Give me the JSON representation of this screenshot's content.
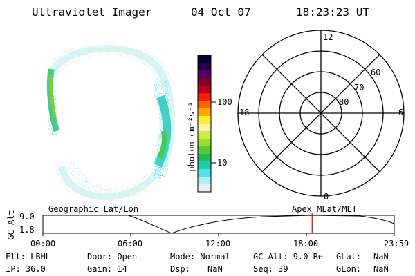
{
  "header": {
    "instrument": "Ultraviolet Imager",
    "date": "04 Oct 07",
    "time": "18:23:23 UT"
  },
  "colorbar": {
    "unit_label": "photon cm⁻²s⁻¹",
    "ticks": [
      "100",
      "10"
    ],
    "colors": [
      "#000033",
      "#220044",
      "#550066",
      "#880022",
      "#bb0022",
      "#ee2200",
      "#ff6600",
      "#ffaa00",
      "#ffee33",
      "#f6f6b0",
      "#ccee44",
      "#99dd33",
      "#55cc33",
      "#22bb55",
      "#22ccaa",
      "#55e0e8",
      "#b0eef0",
      "#e8f0f0"
    ]
  },
  "polar_plot": {
    "mlt_labels": {
      "top": "12",
      "left": "18",
      "right": "6",
      "bottom": "0"
    },
    "lat_labels": [
      "60",
      "70",
      "80"
    ]
  },
  "timeline": {
    "ylabel": "GC Alt",
    "y_ticks": [
      "9.0",
      "1.8"
    ],
    "left_caption": "Geographic Lat/Lon",
    "right_caption": "Apex  MLat/MLT",
    "x_ticks": [
      "00:00",
      "06:00",
      "12:00",
      "18:00",
      "23:59"
    ],
    "current_time_hours": 18.39
  },
  "info": {
    "row1": {
      "filter": "Flt: LBHL",
      "door": "Door: Open",
      "mode": "Mode: Normal",
      "gc_alt": "GC Alt: 9.0 Re",
      "glat_label": "GLat:",
      "glat_value": "NaN"
    },
    "row2": {
      "ip": "IP: 36.0",
      "gain": "Gain: 14",
      "dsp_label": "Dsp:",
      "dsp_value": "NaN",
      "seq": "Seq: 39",
      "glon_label": "GLon:",
      "glon_value": "NaN"
    }
  }
}
